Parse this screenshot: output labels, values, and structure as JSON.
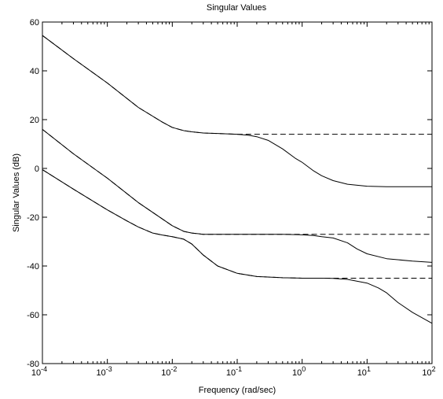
{
  "chart_data": {
    "type": "line",
    "title": "Singular Values",
    "xlabel": "Frequency (rad/sec)",
    "ylabel": "Singular Values (dB)",
    "x_scale": "log",
    "xlim": [
      0.0001,
      100
    ],
    "ylim": [
      -80,
      60
    ],
    "grid": false,
    "x_ticks": [
      {
        "value": 0.0001,
        "base": "10",
        "exp": "-4"
      },
      {
        "value": 0.001,
        "base": "10",
        "exp": "-3"
      },
      {
        "value": 0.01,
        "base": "10",
        "exp": "-2"
      },
      {
        "value": 0.1,
        "base": "10",
        "exp": "-1"
      },
      {
        "value": 1,
        "base": "10",
        "exp": "0"
      },
      {
        "value": 10,
        "base": "10",
        "exp": "1"
      },
      {
        "value": 100,
        "base": "10",
        "exp": "2"
      }
    ],
    "y_ticks": [
      {
        "value": 60,
        "label": "60"
      },
      {
        "value": 40,
        "label": "40"
      },
      {
        "value": 20,
        "label": "20"
      },
      {
        "value": 0,
        "label": "0"
      },
      {
        "value": -20,
        "label": "-20"
      },
      {
        "value": -40,
        "label": "-40"
      },
      {
        "value": -60,
        "label": "-60"
      },
      {
        "value": -80,
        "label": "-80"
      }
    ],
    "series": [
      {
        "style": "solid",
        "x": [
          0.0001,
          0.0003,
          0.001,
          0.003,
          0.007,
          0.01,
          0.015,
          0.02,
          0.03,
          0.05,
          0.1,
          0.15,
          0.2,
          0.3,
          0.5,
          0.8,
          1,
          1.5,
          2,
          3,
          5,
          10,
          20,
          50,
          100
        ],
        "y": [
          54.5,
          45,
          35,
          25,
          19,
          16.8,
          15.5,
          15,
          14.5,
          14.3,
          14,
          13.6,
          13,
          11.5,
          8,
          4,
          2.5,
          -1,
          -3,
          -5,
          -6.5,
          -7.3,
          -7.5,
          -7.5,
          -7.5
        ]
      },
      {
        "style": "solid",
        "x": [
          0.0001,
          0.0003,
          0.001,
          0.003,
          0.01,
          0.015,
          0.02,
          0.03,
          0.05,
          0.1,
          0.3,
          0.5,
          1,
          1.5,
          2,
          3,
          5,
          7,
          10,
          20,
          50,
          100
        ],
        "y": [
          16,
          6,
          -4,
          -14,
          -23.5,
          -25.8,
          -26.5,
          -27,
          -27,
          -27,
          -27,
          -27,
          -27.2,
          -27.5,
          -28,
          -28.5,
          -30.5,
          -33,
          -35,
          -37,
          -38,
          -38.5
        ]
      },
      {
        "style": "solid",
        "x": [
          0.0001,
          0.0003,
          0.001,
          0.002,
          0.003,
          0.005,
          0.007,
          0.01,
          0.015,
          0.02,
          0.03,
          0.05,
          0.1,
          0.2,
          0.5,
          1,
          2,
          3,
          5,
          10,
          15,
          20,
          30,
          50,
          100
        ],
        "y": [
          -0.5,
          -8.5,
          -17,
          -21.5,
          -24,
          -26.5,
          -27.3,
          -28,
          -29,
          -31,
          -35.5,
          -40,
          -43,
          -44.3,
          -44.8,
          -45,
          -45,
          -45.1,
          -45.5,
          -47,
          -49,
          -51,
          -55,
          -59,
          -63.5
        ]
      },
      {
        "style": "dashed",
        "x": [
          0.0001,
          0.0003,
          0.001,
          0.003,
          0.007,
          0.01,
          0.015,
          0.02,
          0.03,
          0.05,
          0.1,
          0.3,
          1,
          3,
          10,
          30,
          100
        ],
        "y": [
          54.5,
          45,
          35,
          25,
          19,
          16.8,
          15.5,
          15,
          14.5,
          14.3,
          14,
          14,
          14,
          14,
          14,
          14,
          14
        ]
      },
      {
        "style": "dashed",
        "x": [
          0.0001,
          0.0003,
          0.001,
          0.003,
          0.01,
          0.015,
          0.02,
          0.03,
          0.05,
          0.1,
          0.3,
          1,
          3,
          10,
          30,
          100
        ],
        "y": [
          16,
          6,
          -4,
          -14,
          -23.5,
          -25.8,
          -26.5,
          -27,
          -27,
          -27,
          -27,
          -27,
          -27,
          -27,
          -27,
          -27
        ]
      },
      {
        "style": "dashed",
        "x": [
          0.0001,
          0.0003,
          0.001,
          0.002,
          0.003,
          0.005,
          0.007,
          0.01,
          0.015,
          0.02,
          0.03,
          0.05,
          0.1,
          0.2,
          0.5,
          1,
          3,
          10,
          30,
          100
        ],
        "y": [
          -0.5,
          -8.5,
          -17,
          -21.5,
          -24,
          -26.5,
          -27.3,
          -28,
          -29,
          -31,
          -35.5,
          -40,
          -43,
          -44.3,
          -44.8,
          -45,
          -45,
          -45,
          -45,
          -45
        ]
      }
    ]
  }
}
